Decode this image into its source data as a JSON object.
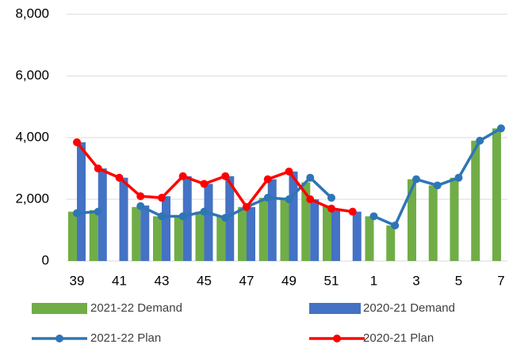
{
  "chart_data": {
    "type": "bar_line",
    "categories": [
      "39",
      null,
      "41",
      null,
      "43",
      null,
      "45",
      null,
      "47",
      null,
      "49",
      null,
      "51",
      null,
      "1",
      null,
      "3",
      null,
      "5",
      null,
      "7"
    ],
    "series": [
      {
        "name": "2021-22 Demand",
        "kind": "bar",
        "color": "#70ad47",
        "values": [
          1600,
          1650,
          null,
          1750,
          1450,
          1450,
          1600,
          1450,
          1750,
          2050,
          2000,
          2550,
          1800,
          null,
          1450,
          1150,
          2650,
          2450,
          2700,
          3900,
          4300
        ]
      },
      {
        "name": "2020-21 Demand",
        "kind": "bar",
        "color": "#4472c4",
        "values": [
          3850,
          3000,
          2700,
          1800,
          2100,
          2750,
          2500,
          2750,
          1750,
          2650,
          2900,
          2000,
          1700,
          1600,
          null,
          null,
          null,
          null,
          null,
          null,
          null
        ]
      },
      {
        "name": "2021-22 Plan",
        "kind": "line",
        "color": "#2e75b6",
        "values": [
          1550,
          1600,
          null,
          1780,
          1450,
          1450,
          1600,
          1400,
          1750,
          2050,
          2000,
          2700,
          2050,
          null,
          1450,
          1150,
          2650,
          2450,
          2700,
          3900,
          4300
        ]
      },
      {
        "name": "2020-21 Plan",
        "kind": "line",
        "color": "#ff0000",
        "values": [
          3850,
          3000,
          2700,
          2100,
          2050,
          2750,
          2500,
          2750,
          1750,
          2650,
          2900,
          2000,
          1700,
          1600,
          null,
          null,
          null,
          null,
          null,
          null,
          null
        ]
      }
    ],
    "ylim": [
      0,
      8000
    ],
    "yticks": [
      0,
      {
        "value": 2000,
        "label": "2,000"
      },
      {
        "value": 4000,
        "label": "4,000"
      },
      {
        "value": 6000,
        "label": "6,000"
      },
      {
        "value": 8000,
        "label": "8,000"
      }
    ],
    "grid": true,
    "legend": "bottom"
  }
}
